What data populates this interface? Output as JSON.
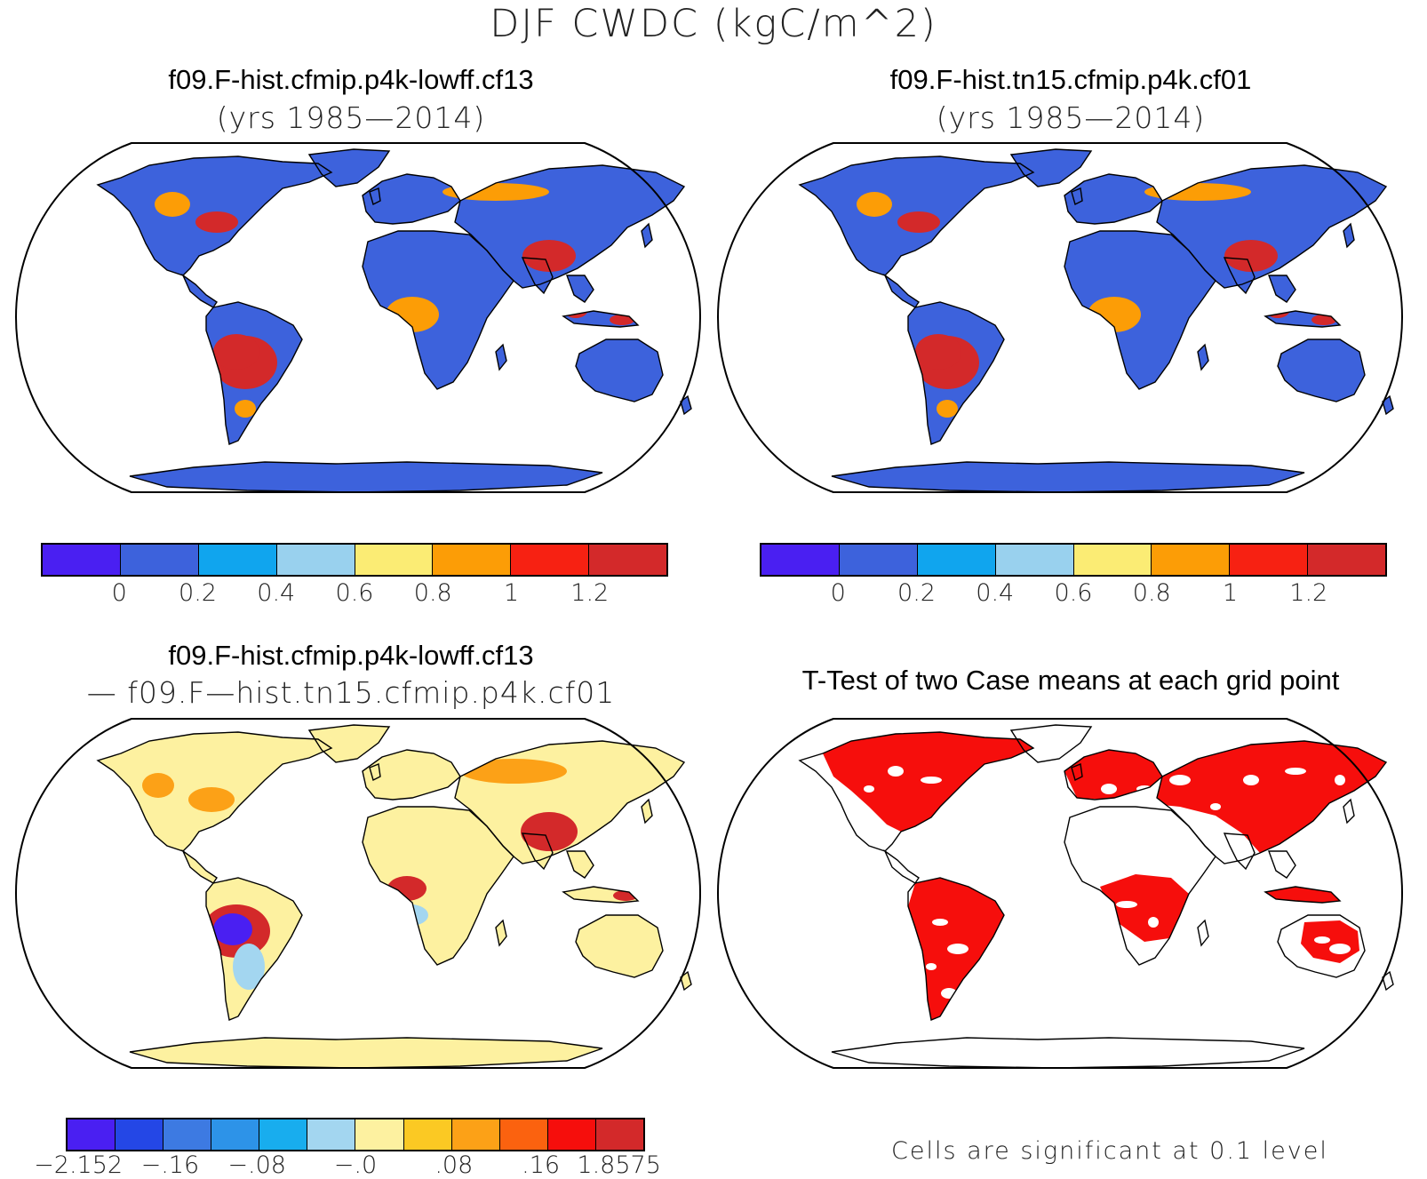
{
  "figure": {
    "title": "DJF CWDC (kgC/m^2)"
  },
  "panels": {
    "top_left": {
      "title": "f09.F-hist.cfmip.p4k-lowff.cf13",
      "subtitle": "(yrs 1985—2014)"
    },
    "top_right": {
      "title": "f09.F-hist.tn15.cfmip.p4k.cf01",
      "subtitle": "(yrs 1985—2014)"
    },
    "bottom_left": {
      "title": "f09.F-hist.cfmip.p4k-lowff.cf13",
      "subtitle": "— f09.F—hist.tn15.cfmip.p4k.cf01"
    },
    "bottom_right": {
      "title": "T-Test of two Case means at each grid point",
      "note": "Cells are significant at 0.1 level"
    }
  },
  "colorbars": {
    "abs": {
      "colors": [
        "#4a1ff2",
        "#3d62dc",
        "#10a5ee",
        "#99d1ee",
        "#fbec74",
        "#fc9d06",
        "#f72112",
        "#d3292a"
      ],
      "tick_labels": [
        "0",
        "0.2",
        "0.4",
        "0.6",
        "0.8",
        "1",
        "1.2"
      ]
    },
    "diff": {
      "colors": [
        "#4a1ff2",
        "#2447e6",
        "#3d7ae2",
        "#2d93e8",
        "#18adee",
        "#a3d6f0",
        "#fdf1a0",
        "#fbc923",
        "#fca117",
        "#fb620f",
        "#f60e0c",
        "#d3292a"
      ],
      "tick_labels": [
        "−2.152",
        "−.16",
        "−.08",
        "−.0",
        ".08",
        ".16",
        "1.8575"
      ]
    }
  },
  "map_colors": {
    "ocean": "#ffffff",
    "land_low": "#3d62dc",
    "land_high": "#d3292a",
    "land_mid": "#fc9d06",
    "diff_base": "#fdf1a0",
    "diff_pos": "#fca117",
    "diff_strong": "#d3292a",
    "diff_neg": "#a3d6f0",
    "diff_very_neg": "#4a1ff2",
    "signif": "#f60e0c"
  }
}
